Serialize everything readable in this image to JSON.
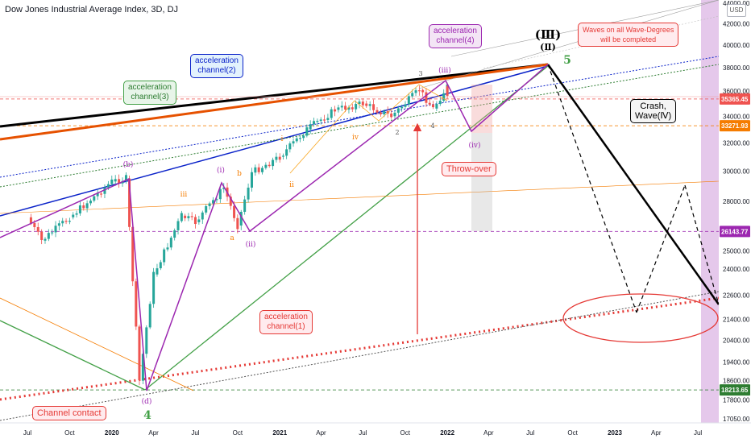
{
  "header": {
    "title": "Dow Jones Industrial Average Index, 3D, DJ",
    "currency": "USD"
  },
  "colors": {
    "candle_up": "#26a69a",
    "candle_down": "#ef5350",
    "wave_line": "#9c27b0",
    "channel_blue": "#0a22c9",
    "channel_orange": "#e65100",
    "channel_green": "#43a047",
    "projection": "#000000",
    "highlight_band": "#ce93d8"
  },
  "chart_data": {
    "type": "candlestick",
    "title": "Dow Jones Industrial Average Index, 3D, DJ",
    "y_axis": {
      "scale": "log",
      "tick_labels": [
        "44000.00",
        "42000.00",
        "40000.00",
        "38000.00",
        "36000.00",
        "34000.00",
        "32000.00",
        "30000.00",
        "28000.00",
        "26000.00",
        "25000.00",
        "24000.00",
        "22600.00",
        "21400.00",
        "20400.00",
        "19400.00",
        "18600.00",
        "17800.00",
        "17050.00"
      ],
      "highlighted_prices": [
        {
          "label": "35365.45",
          "color": "#ef5350"
        },
        {
          "label": "33271.93",
          "color": "#f57c00"
        },
        {
          "label": "26143.77",
          "color": "#9c27b0"
        },
        {
          "label": "18213.65",
          "color": "#2e7d32"
        }
      ]
    },
    "x_axis": {
      "tick_labels": [
        "Jul",
        "Oct",
        "2020",
        "Apr",
        "Jul",
        "Oct",
        "2021",
        "Apr",
        "Jul",
        "Oct",
        "2022",
        "Apr",
        "Jul",
        "Oct",
        "2023",
        "Apr",
        "Jul"
      ]
    },
    "price_path": [
      {
        "date": "2019-07",
        "close": 27000
      },
      {
        "date": "2019-08",
        "close": 25600
      },
      {
        "date": "2019-10",
        "close": 27000
      },
      {
        "date": "2019-12",
        "close": 28500
      },
      {
        "date": "2020-01",
        "close": 29300
      },
      {
        "date": "2020-02",
        "close": 29500
      },
      {
        "date": "2020-03",
        "close": 18600
      },
      {
        "date": "2020-04",
        "close": 23700
      },
      {
        "date": "2020-06",
        "close": 27100
      },
      {
        "date": "2020-07",
        "close": 26700
      },
      {
        "date": "2020-09",
        "close": 28900
      },
      {
        "date": "2020-10",
        "close": 26500
      },
      {
        "date": "2020-11",
        "close": 29900
      },
      {
        "date": "2021-01",
        "close": 31000
      },
      {
        "date": "2021-03",
        "close": 33000
      },
      {
        "date": "2021-05",
        "close": 34500
      },
      {
        "date": "2021-07",
        "close": 35000
      },
      {
        "date": "2021-09",
        "close": 34000
      },
      {
        "date": "2021-11",
        "close": 36100
      },
      {
        "date": "2021-12",
        "close": 34600
      },
      {
        "date": "2022-01",
        "close": 36400
      },
      {
        "date": "2022-01",
        "close": 35365
      }
    ],
    "projection_label": "Crash, Wave(Ⅳ)",
    "wave_labels": [
      "(Ⅲ)",
      "(Ⅱ)",
      "5",
      "4",
      "(iii)",
      "(iv)",
      "(ii)",
      "(i)",
      "(b)",
      "(d)",
      "b",
      "a",
      "iii",
      "iv",
      "ii",
      "i",
      "3",
      "2",
      "4"
    ]
  },
  "annotations": {
    "acc_channel_1": "acceleration\nchannel(1)",
    "acc_channel_2": "acceleration\nchannel(2)",
    "acc_channel_3": "acceleration\nchannel(3)",
    "acc_channel_4": "acceleration\nchannel(4)",
    "waves_completed": "Waves on all Wave-Degrees\nwill be completed",
    "crash": "Crash,\nWave(Ⅳ)",
    "throw_over": "Throw-over",
    "channel_contact": "Channel contact"
  }
}
